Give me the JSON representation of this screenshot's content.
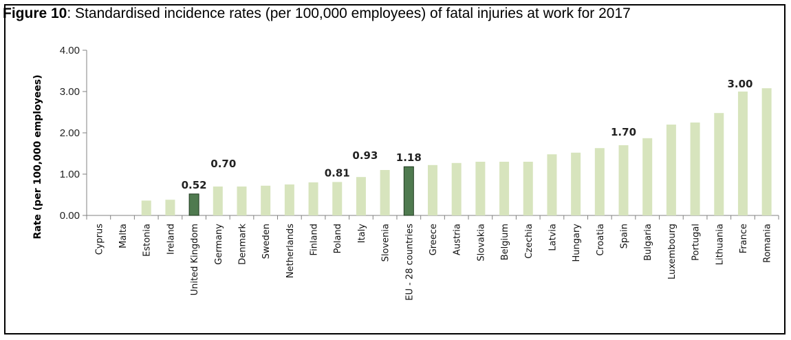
{
  "figure": {
    "label": "Figure 10",
    "caption": ": Standardised incidence rates (per 100,000 employees) of fatal injuries at work for 2017"
  },
  "colors": {
    "bar": "#d7e4bd",
    "highlight": "#4f7a4f",
    "axis": "#808080"
  },
  "chart_data": {
    "type": "bar",
    "title": "Standardised incidence rates (per 100,000 employees) of fatal injuries at work for 2017",
    "xlabel": "",
    "ylabel": "Rate (per 100,000 employees)",
    "ylim": [
      0,
      4
    ],
    "yticks": [
      0,
      1,
      2,
      3,
      4
    ],
    "ytick_labels": [
      "0.00",
      "1.00",
      "2.00",
      "3.00",
      "4.00"
    ],
    "grid": false,
    "legend": "none",
    "categories": [
      "Cyprus",
      "Malta",
      "Estonia",
      "Ireland",
      "United Kingdom",
      "Germany",
      "Denmark",
      "Sweden",
      "Netherlands",
      "Finland",
      "Poland",
      "Italy",
      "Slovenia",
      "EU - 28 countries",
      "Greece",
      "Austria",
      "Slovakia",
      "Belgium",
      "Czechia",
      "Latvia",
      "Hungary",
      "Croatia",
      "Spain",
      "Bulgaria",
      "Luxembourg",
      "Portugal",
      "Lithuania",
      "France",
      "Romania"
    ],
    "values": [
      0,
      0,
      0.36,
      0.38,
      0.52,
      0.7,
      0.7,
      0.72,
      0.75,
      0.8,
      0.81,
      0.93,
      1.1,
      1.18,
      1.22,
      1.27,
      1.3,
      1.3,
      1.3,
      1.48,
      1.52,
      1.63,
      1.7,
      1.87,
      2.2,
      2.25,
      2.48,
      3.0,
      3.08
    ],
    "highlighted": [
      "United Kingdom",
      "EU - 28 countries"
    ],
    "data_labels": [
      {
        "category": "United Kingdom",
        "text": "0.52"
      },
      {
        "category": "Germany",
        "text": "0.70"
      },
      {
        "category": "Poland",
        "text": "0.81"
      },
      {
        "category": "Italy",
        "text": "0.93"
      },
      {
        "category": "EU - 28 countries",
        "text": "1.18"
      },
      {
        "category": "Spain",
        "text": "1.70"
      },
      {
        "category": "France",
        "text": "3.00"
      }
    ]
  }
}
